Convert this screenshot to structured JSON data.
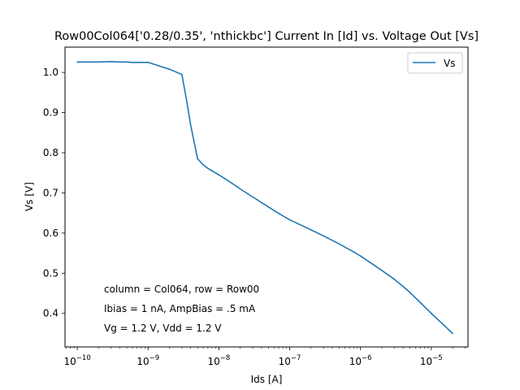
{
  "chart_data": {
    "type": "line",
    "title": "Row00Col064['0.28/0.35', 'nthickbc'] Current In [Id] vs. Voltage Out [Vs]",
    "xlabel": "Ids [A]",
    "ylabel": "Vs [V]",
    "xscale": "log",
    "xlim": [
      6.7e-11,
      3.3e-05
    ],
    "ylim": [
      0.3165,
      1.063
    ],
    "xticks": [
      {
        "value": 1e-10,
        "mant": "10",
        "exp": "−10"
      },
      {
        "value": 1e-09,
        "mant": "10",
        "exp": "−9"
      },
      {
        "value": 1e-08,
        "mant": "10",
        "exp": "−8"
      },
      {
        "value": 1e-07,
        "mant": "10",
        "exp": "−7"
      },
      {
        "value": 1e-06,
        "mant": "10",
        "exp": "−6"
      },
      {
        "value": 1e-05,
        "mant": "10",
        "exp": "−5"
      }
    ],
    "yticks": [
      {
        "value": 0.4,
        "label": "0.4"
      },
      {
        "value": 0.5,
        "label": "0.5"
      },
      {
        "value": 0.6,
        "label": "0.6"
      },
      {
        "value": 0.7,
        "label": "0.7"
      },
      {
        "value": 0.8,
        "label": "0.8"
      },
      {
        "value": 0.9,
        "label": "0.9"
      },
      {
        "value": 1.0,
        "label": "1.0"
      }
    ],
    "grid": false,
    "legend_position": "top-right",
    "series": [
      {
        "name": "Vs",
        "color": "#1f77b4",
        "x": [
          1e-10,
          1.5e-10,
          2e-10,
          3e-10,
          4e-10,
          5e-10,
          6e-10,
          7e-10,
          8e-10,
          1e-09,
          1.5e-09,
          2e-09,
          3e-09,
          3.5e-09,
          4e-09,
          5e-09,
          6e-09,
          7e-09,
          8e-09,
          1e-08,
          1.5e-08,
          2e-08,
          3e-08,
          5e-08,
          7e-08,
          1e-07,
          2e-07,
          3e-07,
          5e-07,
          8e-07,
          1e-06,
          1.5e-06,
          2e-06,
          3e-06,
          4e-06,
          5e-06,
          7e-06,
          1e-05,
          1.5e-05,
          2e-05
        ],
        "y": [
          1.026,
          1.026,
          1.026,
          1.027,
          1.026,
          1.026,
          1.025,
          1.025,
          1.025,
          1.025,
          1.015,
          1.008,
          0.995,
          0.93,
          0.868,
          0.785,
          0.77,
          0.761,
          0.755,
          0.745,
          0.725,
          0.71,
          0.69,
          0.665,
          0.649,
          0.633,
          0.608,
          0.593,
          0.573,
          0.553,
          0.543,
          0.522,
          0.507,
          0.485,
          0.467,
          0.452,
          0.427,
          0.4,
          0.371,
          0.35
        ]
      }
    ],
    "annotations": [
      "column = Col064, row = Row00",
      "Ibias = 1 nA, AmpBias = .5 mA",
      "Vg = 1.2 V, Vdd = 1.2 V"
    ]
  }
}
